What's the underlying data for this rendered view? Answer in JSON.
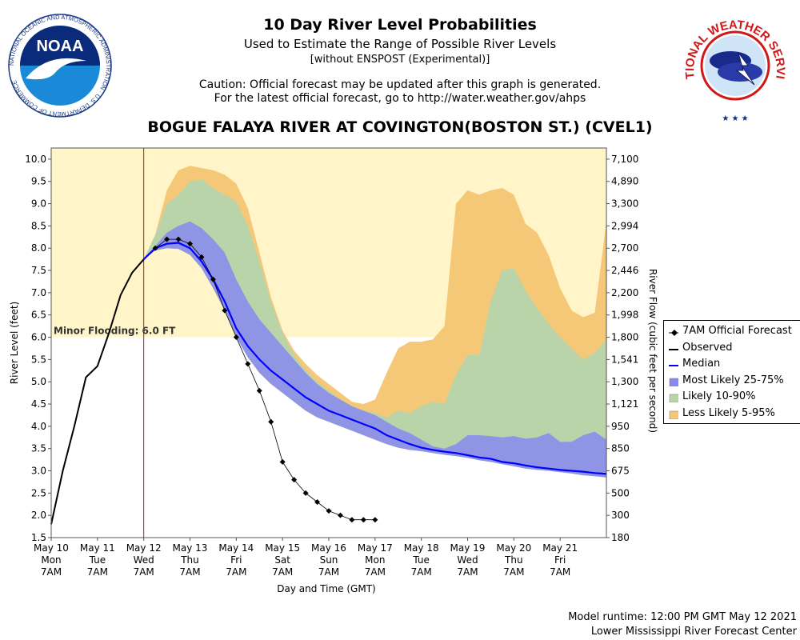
{
  "header": {
    "title": "10 Day River Level Probabilities",
    "subtitle": "Used to Estimate the Range of Possible River Levels",
    "note": "[without ENSPOST (Experimental)]",
    "caution1": "Caution: Official forecast may be updated after this graph is generated.",
    "caution2": "For the latest official forecast, go to http://water.weather.gov/ahps",
    "station": "BOGUE FALAYA RIVER AT COVINGTON(BOSTON ST.) (CVEL1)"
  },
  "logos": {
    "noaa_text": "NOAA",
    "noaa_ring": "NATIONAL OCEANIC AND ATMOSPHERIC ADMINISTRATION · U.S. DEPARTMENT OF COMMERCE",
    "nws_ring": "NATIONAL WEATHER SERVICE"
  },
  "footer": {
    "runtime": "Model runtime: 12:00 PM GMT May 12 2021",
    "center": "Lower Mississippi River Forecast Center"
  },
  "colors": {
    "plot_bg": "#fff5c8",
    "less_likely": "#f5c878",
    "likely": "#b8d4a8",
    "most_likely": "#8888f0",
    "median": "#0000ff",
    "observed": "#000000",
    "forecast": "#000000",
    "now_line": "#a02020"
  },
  "chart_data": {
    "type": "line",
    "ylabel": "River Level (feet)",
    "y2label": "River Flow (cubic feet per second)",
    "xlabel": "Day and Time (GMT)",
    "ylim": [
      1.5,
      10.25
    ],
    "xlim": [
      0,
      12
    ],
    "yticks": [
      1.5,
      2.0,
      2.5,
      3.0,
      3.5,
      4.0,
      4.5,
      5.0,
      5.5,
      6.0,
      6.5,
      7.0,
      7.5,
      8.0,
      8.5,
      9.0,
      9.5,
      10.0
    ],
    "ytick_labels": [
      "1.5",
      "2.0",
      "2.5",
      "3.0",
      "3.5",
      "4.0",
      "4.5",
      "5.0",
      "5.5",
      "6.0",
      "6.5",
      "7.0",
      "7.5",
      "8.0",
      "8.5",
      "9.0",
      "9.5",
      "10.0"
    ],
    "y2tick_labels": [
      "180",
      "300",
      "500",
      "675",
      "850",
      "950",
      "1,121",
      "1,300",
      "1,541",
      "1,800",
      "1,998",
      "2,200",
      "2,446",
      "2,700",
      "2,994",
      "3,300",
      "4,890",
      "7,100"
    ],
    "xticks": [
      {
        "x": 0,
        "l1": "May 10",
        "l2": "Mon",
        "l3": "7AM"
      },
      {
        "x": 1,
        "l1": "May 11",
        "l2": "Tue",
        "l3": "7AM"
      },
      {
        "x": 2,
        "l1": "May 12",
        "l2": "Wed",
        "l3": "7AM"
      },
      {
        "x": 3,
        "l1": "May 13",
        "l2": "Thu",
        "l3": "7AM"
      },
      {
        "x": 4,
        "l1": "May 14",
        "l2": "Fri",
        "l3": "7AM"
      },
      {
        "x": 5,
        "l1": "May 15",
        "l2": "Sat",
        "l3": "7AM"
      },
      {
        "x": 6,
        "l1": "May 16",
        "l2": "Sun",
        "l3": "7AM"
      },
      {
        "x": 7,
        "l1": "May 17",
        "l2": "Mon",
        "l3": "7AM"
      },
      {
        "x": 8,
        "l1": "May 18",
        "l2": "Tue",
        "l3": "7AM"
      },
      {
        "x": 9,
        "l1": "May 19",
        "l2": "Wed",
        "l3": "7AM"
      },
      {
        "x": 10,
        "l1": "May 20",
        "l2": "Thu",
        "l3": "7AM"
      },
      {
        "x": 11,
        "l1": "May 21",
        "l2": "Fri",
        "l3": "7AM"
      }
    ],
    "now_x": 2,
    "flood_stage": {
      "value": 6.0,
      "label": "Minor Flooding: 6.0 FT"
    },
    "observed": {
      "name": "Observed",
      "points": [
        [
          0,
          1.8
        ],
        [
          0.25,
          3.0
        ],
        [
          0.5,
          4.0
        ],
        [
          0.75,
          5.1
        ],
        [
          1.0,
          5.35
        ],
        [
          1.25,
          6.1
        ],
        [
          1.5,
          6.95
        ],
        [
          1.75,
          7.45
        ],
        [
          2.0,
          7.75
        ]
      ]
    },
    "official_forecast": {
      "name": "7AM Official Forecast",
      "points": [
        [
          2.25,
          8.0
        ],
        [
          2.5,
          8.2
        ],
        [
          2.75,
          8.2
        ],
        [
          3.0,
          8.1
        ],
        [
          3.25,
          7.8
        ],
        [
          3.5,
          7.3
        ],
        [
          3.75,
          6.6
        ],
        [
          4.0,
          6.0
        ],
        [
          4.25,
          5.4
        ],
        [
          4.5,
          4.8
        ],
        [
          4.75,
          4.1
        ],
        [
          5.0,
          3.2
        ],
        [
          5.25,
          2.8
        ],
        [
          5.5,
          2.5
        ],
        [
          5.75,
          2.3
        ],
        [
          6.0,
          2.1
        ],
        [
          6.25,
          2.0
        ],
        [
          6.5,
          1.9
        ],
        [
          6.75,
          1.9
        ],
        [
          7.0,
          1.9
        ]
      ]
    },
    "median": {
      "name": "Median",
      "points": [
        [
          2.0,
          7.75
        ],
        [
          2.25,
          8.0
        ],
        [
          2.5,
          8.1
        ],
        [
          2.75,
          8.12
        ],
        [
          3.0,
          8.0
        ],
        [
          3.25,
          7.7
        ],
        [
          3.5,
          7.3
        ],
        [
          3.75,
          6.8
        ],
        [
          4.0,
          6.2
        ],
        [
          4.25,
          5.8
        ],
        [
          4.5,
          5.5
        ],
        [
          4.75,
          5.25
        ],
        [
          5.0,
          5.05
        ],
        [
          5.25,
          4.85
        ],
        [
          5.5,
          4.65
        ],
        [
          5.75,
          4.5
        ],
        [
          6.0,
          4.35
        ],
        [
          6.25,
          4.25
        ],
        [
          6.5,
          4.15
        ],
        [
          6.75,
          4.05
        ],
        [
          7.0,
          3.95
        ],
        [
          7.25,
          3.8
        ],
        [
          7.5,
          3.7
        ],
        [
          7.75,
          3.6
        ],
        [
          8.0,
          3.52
        ],
        [
          8.25,
          3.47
        ],
        [
          8.5,
          3.43
        ],
        [
          8.75,
          3.4
        ],
        [
          9.0,
          3.35
        ],
        [
          9.25,
          3.3
        ],
        [
          9.5,
          3.27
        ],
        [
          9.75,
          3.2
        ],
        [
          10.0,
          3.17
        ],
        [
          10.25,
          3.12
        ],
        [
          10.5,
          3.08
        ],
        [
          10.75,
          3.05
        ],
        [
          11.0,
          3.02
        ],
        [
          11.25,
          3.0
        ],
        [
          11.5,
          2.98
        ],
        [
          11.75,
          2.95
        ],
        [
          12.0,
          2.93
        ]
      ]
    },
    "bands": [
      {
        "name": "Less Likely 5-95%",
        "x": [
          2.0,
          2.25,
          2.5,
          2.75,
          3.0,
          3.25,
          3.5,
          3.75,
          4.0,
          4.25,
          4.5,
          4.75,
          5.0,
          5.25,
          5.5,
          5.75,
          6.0,
          6.25,
          6.5,
          6.75,
          7.0,
          7.25,
          7.5,
          7.75,
          8.0,
          8.25,
          8.5,
          8.75,
          9.0,
          9.25,
          9.5,
          9.75,
          10.0,
          10.25,
          10.5,
          10.75,
          11.0,
          11.25,
          11.5,
          11.75,
          12.0
        ],
        "upper": [
          7.75,
          8.3,
          9.3,
          9.75,
          9.85,
          9.8,
          9.75,
          9.65,
          9.45,
          8.9,
          7.9,
          6.9,
          6.15,
          5.7,
          5.4,
          5.15,
          4.95,
          4.75,
          4.55,
          4.5,
          4.6,
          5.2,
          5.75,
          5.9,
          5.9,
          5.95,
          6.25,
          9.0,
          9.3,
          9.2,
          9.3,
          9.35,
          9.2,
          8.55,
          8.35,
          7.85,
          7.1,
          6.6,
          6.45,
          6.55,
          8.6
        ],
        "lower": [
          7.75,
          7.95,
          8.0,
          8.0,
          7.85,
          7.55,
          7.1,
          6.6,
          6.0,
          5.55,
          5.2,
          4.95,
          4.75,
          4.55,
          4.35,
          4.2,
          4.1,
          4.0,
          3.9,
          3.8,
          3.7,
          3.6,
          3.52,
          3.47,
          3.44,
          3.4,
          3.36,
          3.33,
          3.29,
          3.24,
          3.2,
          3.15,
          3.1,
          3.05,
          3.02,
          3.0,
          2.97,
          2.94,
          2.9,
          2.88,
          2.85
        ]
      },
      {
        "name": "Likely 10-90%",
        "x": [
          2.0,
          2.25,
          2.5,
          2.75,
          3.0,
          3.25,
          3.5,
          3.75,
          4.0,
          4.25,
          4.5,
          4.75,
          5.0,
          5.25,
          5.5,
          5.75,
          6.0,
          6.25,
          6.5,
          6.75,
          7.0,
          7.25,
          7.5,
          7.75,
          8.0,
          8.25,
          8.5,
          8.75,
          9.0,
          9.25,
          9.5,
          9.75,
          10.0,
          10.25,
          10.5,
          10.75,
          11.0,
          11.25,
          11.5,
          11.75,
          12.0
        ],
        "upper": [
          7.75,
          8.3,
          9.0,
          9.2,
          9.5,
          9.55,
          9.35,
          9.2,
          9.05,
          8.5,
          7.7,
          6.8,
          6.1,
          5.6,
          5.25,
          5.0,
          4.8,
          4.6,
          4.45,
          4.35,
          4.3,
          4.2,
          4.35,
          4.3,
          4.45,
          4.55,
          4.5,
          5.15,
          5.6,
          5.6,
          6.8,
          7.5,
          7.55,
          7.05,
          6.65,
          6.3,
          6.0,
          5.75,
          5.5,
          5.65,
          5.95
        ]
      },
      {
        "name": "Most Likely 25-75%",
        "x": [
          2.0,
          2.25,
          2.5,
          2.75,
          3.0,
          3.25,
          3.5,
          3.75,
          4.0,
          4.25,
          4.5,
          4.75,
          5.0,
          5.25,
          5.5,
          5.75,
          6.0,
          6.25,
          6.5,
          6.75,
          7.0,
          7.25,
          7.5,
          7.75,
          8.0,
          8.25,
          8.5,
          8.75,
          9.0,
          9.25,
          9.5,
          9.75,
          10.0,
          10.25,
          10.5,
          10.75,
          11.0,
          11.25,
          11.5,
          11.75,
          12.0
        ],
        "upper": [
          7.75,
          8.05,
          8.35,
          8.5,
          8.6,
          8.45,
          8.2,
          7.9,
          7.3,
          6.8,
          6.4,
          6.1,
          5.8,
          5.5,
          5.2,
          4.95,
          4.75,
          4.6,
          4.45,
          4.35,
          4.25,
          4.1,
          3.95,
          3.85,
          3.7,
          3.55,
          3.5,
          3.6,
          3.8,
          3.8,
          3.78,
          3.75,
          3.78,
          3.72,
          3.75,
          3.85,
          3.65,
          3.65,
          3.8,
          3.88,
          3.7
        ],
        "lower": [
          7.75,
          7.95,
          8.0,
          7.98,
          7.85,
          7.55,
          7.1,
          6.6,
          6.0,
          5.55,
          5.2,
          4.95,
          4.75,
          4.55,
          4.35,
          4.2,
          4.1,
          4.0,
          3.9,
          3.8,
          3.7,
          3.6,
          3.52,
          3.47,
          3.44,
          3.4,
          3.36,
          3.33,
          3.29,
          3.24,
          3.2,
          3.15,
          3.1,
          3.05,
          3.02,
          3.0,
          2.97,
          2.94,
          2.9,
          2.88,
          2.85
        ]
      }
    ],
    "legend": [
      {
        "key": "forecast",
        "label": "7AM Official Forecast"
      },
      {
        "key": "observed",
        "label": "Observed"
      },
      {
        "key": "median",
        "label": "Median"
      },
      {
        "key": "most_likely",
        "label": "Most Likely 25-75%"
      },
      {
        "key": "likely",
        "label": "Likely 10-90%"
      },
      {
        "key": "less_likely",
        "label": "Less Likely 5-95%"
      }
    ],
    "legend_position": "right"
  }
}
